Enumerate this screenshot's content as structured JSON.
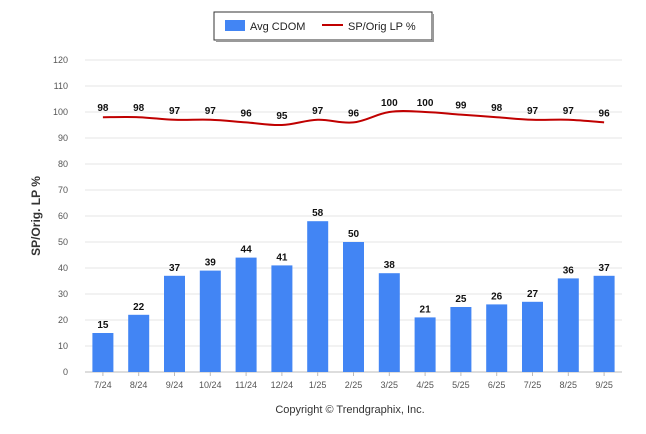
{
  "chart_data": {
    "type": "bar",
    "ylabel": "SP/Orig. LP %",
    "ylim": [
      0,
      120
    ],
    "yticks": [
      0,
      10,
      20,
      30,
      40,
      50,
      60,
      70,
      80,
      90,
      100,
      110,
      120
    ],
    "grid": true,
    "legend_position": "top-center",
    "categories": [
      "7/24",
      "8/24",
      "9/24",
      "10/24",
      "11/24",
      "12/24",
      "1/25",
      "2/25",
      "3/25",
      "4/25",
      "5/25",
      "6/25",
      "7/25",
      "8/25",
      "9/25"
    ],
    "series": [
      {
        "name": "Avg CDOM",
        "type": "bar",
        "color": "#4285f4",
        "values": [
          15,
          22,
          37,
          39,
          44,
          41,
          58,
          50,
          38,
          21,
          25,
          26,
          27,
          36,
          37
        ]
      },
      {
        "name": "SP/Orig LP %",
        "type": "line",
        "color": "#c00000",
        "values": [
          98,
          98,
          97,
          97,
          96,
          95,
          97,
          96,
          100,
          100,
          99,
          98,
          97,
          97,
          96
        ]
      }
    ]
  },
  "footer": {
    "credit": "Copyright © Trendgraphix, Inc."
  }
}
